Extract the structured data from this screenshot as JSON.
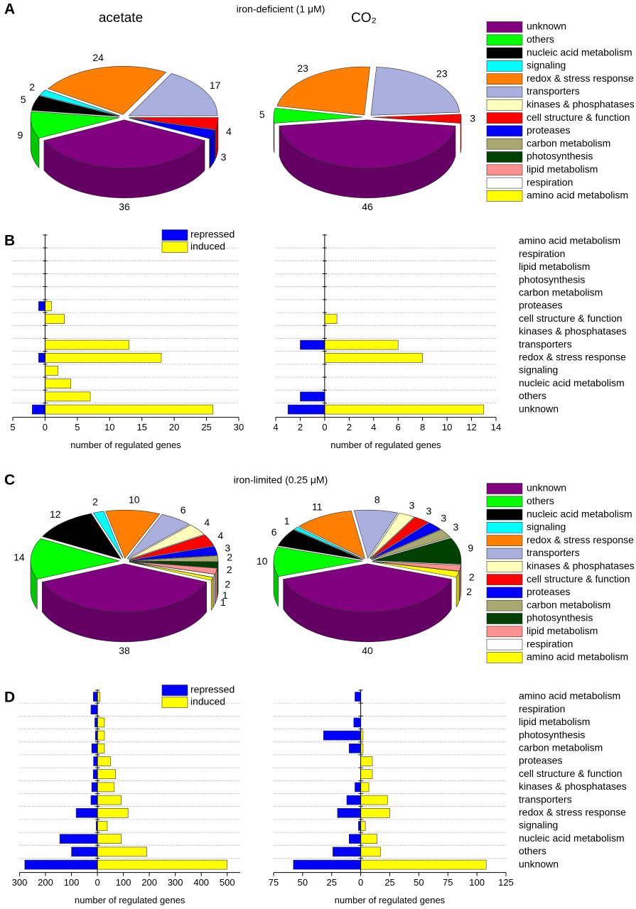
{
  "chart_data": [
    {
      "type": "pie",
      "panel": "A",
      "title": "iron-deficient (1 μM)",
      "categories": [
        "unknown",
        "others",
        "nucleic acid metabolism",
        "signaling",
        "redox & stress response",
        "transporters",
        "kinases & phosphatases",
        "cell structure & function",
        "proteases",
        "carbon metabolism",
        "photosynthesis",
        "lipid metabolism",
        "respiration",
        "amino acid metabolism"
      ],
      "colors": [
        "#800080",
        "#00ff00",
        "#000000",
        "#00ffff",
        "#ff8000",
        "#aab0dd",
        "#ffffbb",
        "#ff0000",
        "#0000ff",
        "#a8a870",
        "#004000",
        "#ff9090",
        "#ffffff",
        "#ffff00"
      ],
      "series": [
        {
          "name": "acetate",
          "values": [
            36,
            9,
            5,
            2,
            24,
            17,
            0,
            4,
            3,
            0,
            0,
            0,
            0,
            0
          ]
        },
        {
          "name": "CO₂",
          "values": [
            46,
            5,
            0,
            0,
            23,
            23,
            0,
            3,
            0,
            0,
            0,
            0,
            0,
            0
          ]
        }
      ]
    },
    {
      "type": "barh",
      "panel": "B",
      "categories": [
        "amino acid metabolism",
        "respiration",
        "lipid metabolism",
        "photosynthesis",
        "carbon metabolism",
        "proteases",
        "cell structure & function",
        "kinases & phosphatases",
        "transporters",
        "redox & stress response",
        "signaling",
        "nucleic acid metabolism",
        "others",
        "unknown"
      ],
      "series": [
        {
          "name": "repressed",
          "color": "#0000ff"
        },
        {
          "name": "induced",
          "color": "#ffff00"
        }
      ],
      "grid": true,
      "plots": [
        {
          "xlim": [
            -5,
            30
          ],
          "xticks": [
            {
              "value": -5,
              "label": "5"
            },
            0,
            5,
            10,
            15,
            20,
            25,
            30
          ],
          "xlabel": "number of regulated genes",
          "series": [
            {
              "values": [
                0,
                0,
                0,
                0,
                0,
                -1,
                0,
                0,
                0,
                -1,
                0,
                0,
                0,
                -2
              ]
            },
            {
              "values": [
                0,
                0,
                0,
                0,
                0,
                1,
                3,
                0,
                13,
                18,
                2,
                4,
                7,
                26
              ]
            }
          ]
        },
        {
          "xlim": [
            -4,
            14
          ],
          "xticks": [
            {
              "value": -4,
              "label": "4"
            },
            {
              "value": -2,
              "label": "2"
            },
            0,
            2,
            4,
            6,
            8,
            10,
            12,
            14
          ],
          "xlabel": "number of regulated genes",
          "series": [
            {
              "values": [
                0,
                0,
                0,
                0,
                0,
                0,
                0,
                0,
                -2,
                0,
                0,
                0,
                -2,
                -3
              ]
            },
            {
              "values": [
                0,
                0,
                0,
                0,
                0,
                0,
                1,
                0,
                6,
                8,
                0,
                0,
                0,
                13
              ]
            }
          ]
        }
      ]
    },
    {
      "type": "pie",
      "panel": "C",
      "title": "iron-limited (0.25 μM)",
      "categories": [
        "unknown",
        "others",
        "nucleic acid metabolism",
        "signaling",
        "redox & stress response",
        "transporters",
        "kinases & phosphatases",
        "cell structure & function",
        "proteases",
        "carbon metabolism",
        "photosynthesis",
        "lipid metabolism",
        "respiration",
        "amino acid metabolism"
      ],
      "colors": [
        "#800080",
        "#00ff00",
        "#000000",
        "#00ffff",
        "#ff8000",
        "#aab0dd",
        "#ffffbb",
        "#ff0000",
        "#0000ff",
        "#a8a870",
        "#004000",
        "#ff9090",
        "#ffffff",
        "#ffff00"
      ],
      "series": [
        {
          "values": [
            38,
            14,
            12,
            2,
            10,
            6,
            4,
            4,
            3,
            2,
            2,
            2,
            1,
            1
          ]
        },
        {
          "values": [
            40,
            10,
            6,
            1,
            11,
            8,
            3,
            3,
            3,
            3,
            9,
            2,
            0,
            2
          ]
        }
      ]
    },
    {
      "type": "barh",
      "panel": "D",
      "categories": [
        "amino acid metabolism",
        "respiration",
        "lipid metabolism",
        "photosynthesis",
        "carbon metabolism",
        "proteases",
        "cell structure & function",
        "kinases & phosphatases",
        "transporters",
        "redox & stress response",
        "signaling",
        "nucleic acid metabolism",
        "others",
        "unknown"
      ],
      "series": [
        {
          "name": "repressed",
          "color": "#0000ff"
        },
        {
          "name": "induced",
          "color": "#ffff00"
        }
      ],
      "grid": true,
      "plots": [
        {
          "xlim": [
            -300,
            550
          ],
          "xticks": [
            {
              "value": -300,
              "label": "300"
            },
            {
              "value": -200,
              "label": "200"
            },
            {
              "value": -100,
              "label": "100"
            },
            0,
            100,
            200,
            300,
            400,
            500
          ],
          "xlabel": "number of regulated genes",
          "series": [
            {
              "values": [
                -16,
                -25,
                -10,
                -8,
                -22,
                -15,
                -16,
                -22,
                -25,
                -82,
                -5,
                -145,
                -100,
                -280
              ]
            },
            {
              "values": [
                10,
                0,
                27,
                27,
                27,
                50,
                70,
                65,
                92,
                118,
                38,
                92,
                190,
                500
              ]
            }
          ]
        },
        {
          "xlim": [
            -75,
            125
          ],
          "xticks": [
            {
              "value": -75,
              "label": "75"
            },
            {
              "value": -50,
              "label": "50"
            },
            {
              "value": -25,
              "label": "25"
            },
            0,
            25,
            50,
            75,
            100,
            125
          ],
          "xlabel": "number of regulated genes",
          "series": [
            {
              "values": [
                -5,
                0,
                -6,
                -32,
                -10,
                0,
                0,
                -5,
                -12,
                -20,
                -2,
                -10,
                -24,
                -58
              ]
            },
            {
              "values": [
                0,
                0,
                0,
                2,
                2,
                10,
                10,
                7,
                23,
                25,
                4,
                14,
                17,
                108
              ]
            }
          ]
        }
      ]
    }
  ]
}
